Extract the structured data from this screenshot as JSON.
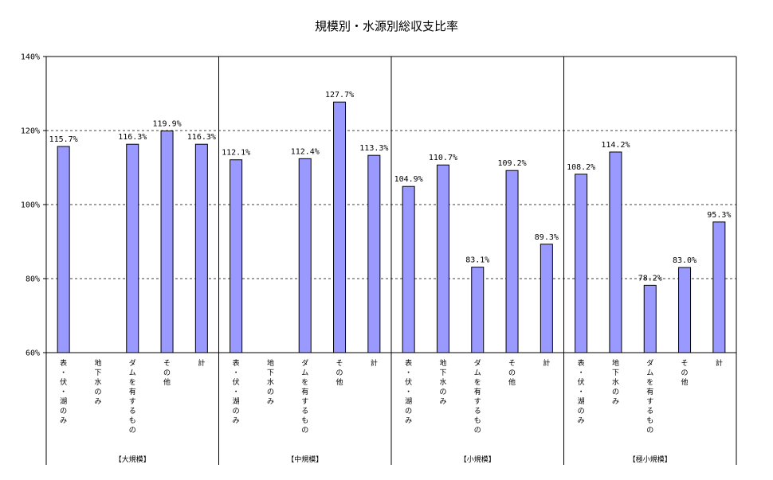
{
  "chart_data": {
    "type": "bar",
    "title": "規模別・水源別総収支比率",
    "xlabel": "",
    "ylabel": "",
    "ylim": [
      60,
      140
    ],
    "yticks": [
      "60%",
      "80%",
      "100%",
      "120%",
      "140%"
    ],
    "ytick_values": [
      60,
      80,
      100,
      120,
      140
    ],
    "grid": "dashed at 80%, 100%, 120%",
    "bar_color": "#9999ff",
    "groups": [
      {
        "name": "【大規模】",
        "categories": [
          "表・伏・湖のみ",
          "地下水のみ",
          "ダムを有するもの",
          "その他",
          "計"
        ],
        "values": [
          115.7,
          null,
          116.3,
          119.9,
          116.3
        ],
        "labels": [
          "115.7%",
          "",
          "116.3%",
          "119.9%",
          "116.3%"
        ]
      },
      {
        "name": "【中規模】",
        "categories": [
          "表・伏・湖のみ",
          "地下水のみ",
          "ダムを有するもの",
          "その他",
          "計"
        ],
        "values": [
          112.1,
          null,
          112.4,
          127.7,
          113.3
        ],
        "labels": [
          "112.1%",
          "",
          "112.4%",
          "127.7%",
          "113.3%"
        ]
      },
      {
        "name": "【小規模】",
        "categories": [
          "表・伏・湖のみ",
          "地下水のみ",
          "ダムを有するもの",
          "その他",
          "計"
        ],
        "values": [
          104.9,
          110.7,
          83.1,
          109.2,
          89.3
        ],
        "labels": [
          "104.9%",
          "110.7%",
          "83.1%",
          "109.2%",
          "89.3%"
        ]
      },
      {
        "name": "【極小規模】",
        "categories": [
          "表・伏・湖のみ",
          "地下水のみ",
          "ダムを有するもの",
          "その他",
          "計"
        ],
        "values": [
          108.2,
          114.2,
          78.2,
          83.0,
          95.3
        ],
        "labels": [
          "108.2%",
          "114.2%",
          "78.2%",
          "83.0%",
          "95.3%"
        ]
      }
    ]
  }
}
